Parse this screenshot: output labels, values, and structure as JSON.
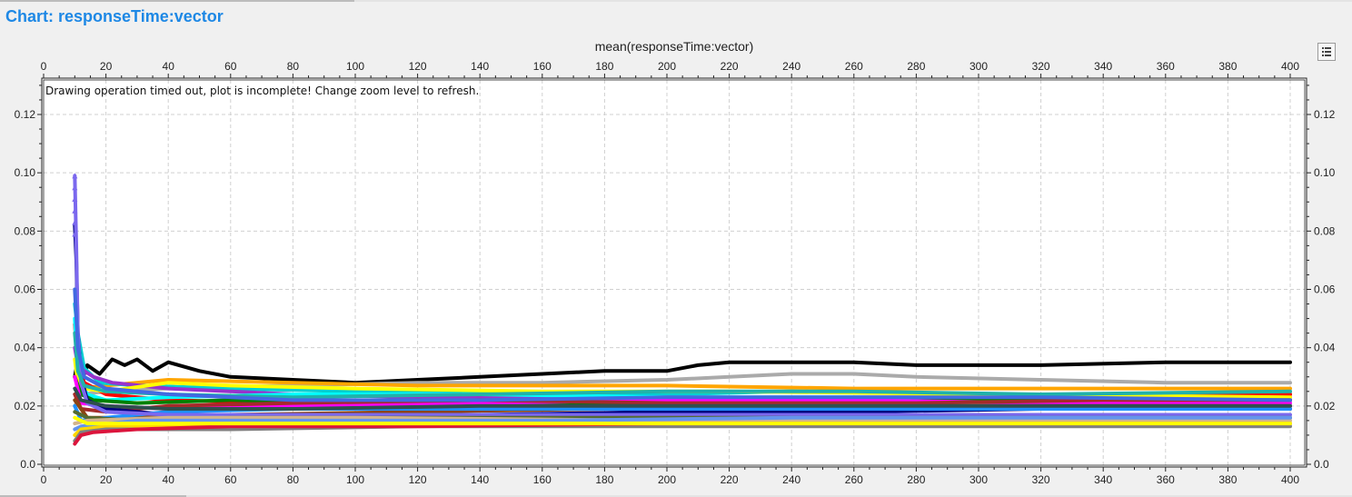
{
  "page": {
    "heading": "Chart: responseTime:vector",
    "legend_icon": "legend-list-icon"
  },
  "chart_data": {
    "type": "line",
    "title": "mean(responseTime:vector)",
    "xlabel": "",
    "ylabel": "",
    "message": "Drawing operation timed out, plot is incomplete! Change zoom level to refresh.",
    "xlim": [
      0,
      400
    ],
    "ylim": [
      0.0,
      0.13
    ],
    "x_ticks": [
      0,
      20,
      40,
      60,
      80,
      100,
      120,
      140,
      160,
      180,
      200,
      220,
      240,
      260,
      280,
      300,
      320,
      340,
      360,
      380,
      400
    ],
    "y_ticks": [
      0.0,
      0.02,
      0.04,
      0.06,
      0.08,
      0.1,
      0.12
    ],
    "y_tick_labels": [
      "0.0",
      "0.02",
      "0.04",
      "0.06",
      "0.08",
      "0.10",
      "0.12"
    ],
    "grid": true,
    "x_axis_top_and_bottom": true,
    "y_axis_left_and_right": true,
    "series": [
      {
        "color": "#000000",
        "points": [
          [
            10,
            0.03
          ],
          [
            11,
            0.036
          ],
          [
            12,
            0.028
          ],
          [
            14,
            0.034
          ],
          [
            18,
            0.031
          ],
          [
            22,
            0.036
          ],
          [
            26,
            0.034
          ],
          [
            30,
            0.036
          ],
          [
            35,
            0.032
          ],
          [
            40,
            0.035
          ],
          [
            50,
            0.032
          ],
          [
            60,
            0.03
          ],
          [
            80,
            0.029
          ],
          [
            100,
            0.028
          ],
          [
            120,
            0.029
          ],
          [
            140,
            0.03
          ],
          [
            160,
            0.031
          ],
          [
            180,
            0.032
          ],
          [
            200,
            0.032
          ],
          [
            210,
            0.034
          ],
          [
            220,
            0.035
          ],
          [
            260,
            0.035
          ],
          [
            280,
            0.034
          ],
          [
            320,
            0.034
          ],
          [
            360,
            0.035
          ],
          [
            400,
            0.035
          ]
        ]
      },
      {
        "color": "#aaaaaa",
        "points": [
          [
            10,
            0.02
          ],
          [
            12,
            0.024
          ],
          [
            20,
            0.025
          ],
          [
            40,
            0.026
          ],
          [
            80,
            0.027
          ],
          [
            120,
            0.028
          ],
          [
            160,
            0.028
          ],
          [
            200,
            0.029
          ],
          [
            220,
            0.03
          ],
          [
            240,
            0.031
          ],
          [
            260,
            0.031
          ],
          [
            280,
            0.03
          ],
          [
            320,
            0.029
          ],
          [
            360,
            0.028
          ],
          [
            400,
            0.028
          ]
        ]
      },
      {
        "color": "#ffa500",
        "points": [
          [
            10,
            0.03
          ],
          [
            12,
            0.026
          ],
          [
            20,
            0.027
          ],
          [
            40,
            0.029
          ],
          [
            80,
            0.028
          ],
          [
            120,
            0.027
          ],
          [
            160,
            0.027
          ],
          [
            200,
            0.027
          ],
          [
            260,
            0.026
          ],
          [
            320,
            0.026
          ],
          [
            360,
            0.026
          ],
          [
            400,
            0.026
          ]
        ]
      },
      {
        "color": "#00ced1",
        "points": [
          [
            10,
            0.055
          ],
          [
            11,
            0.045
          ],
          [
            13,
            0.033
          ],
          [
            18,
            0.028
          ],
          [
            30,
            0.027
          ],
          [
            60,
            0.026
          ],
          [
            100,
            0.025
          ],
          [
            160,
            0.024
          ],
          [
            200,
            0.024
          ],
          [
            240,
            0.025
          ],
          [
            300,
            0.024
          ],
          [
            360,
            0.024
          ],
          [
            400,
            0.024
          ]
        ]
      },
      {
        "color": "#9932cc",
        "points": [
          [
            10,
            0.04
          ],
          [
            11,
            0.034
          ],
          [
            13,
            0.032
          ],
          [
            16,
            0.03
          ],
          [
            22,
            0.028
          ],
          [
            40,
            0.026
          ],
          [
            80,
            0.024
          ],
          [
            120,
            0.023
          ],
          [
            200,
            0.023
          ],
          [
            260,
            0.023
          ],
          [
            320,
            0.023
          ],
          [
            400,
            0.023
          ]
        ]
      },
      {
        "color": "#ff0000",
        "points": [
          [
            10,
            0.048
          ],
          [
            11,
            0.035
          ],
          [
            13,
            0.028
          ],
          [
            20,
            0.024
          ],
          [
            40,
            0.022
          ],
          [
            80,
            0.021
          ],
          [
            120,
            0.022
          ],
          [
            160,
            0.021
          ],
          [
            200,
            0.02
          ],
          [
            260,
            0.022
          ],
          [
            320,
            0.023
          ],
          [
            360,
            0.024
          ],
          [
            400,
            0.024
          ]
        ]
      },
      {
        "color": "#00ffff",
        "points": [
          [
            10,
            0.05
          ],
          [
            11,
            0.03
          ],
          [
            14,
            0.024
          ],
          [
            20,
            0.022
          ],
          [
            40,
            0.023
          ],
          [
            80,
            0.024
          ],
          [
            140,
            0.024
          ],
          [
            200,
            0.023
          ],
          [
            260,
            0.023
          ],
          [
            320,
            0.022
          ],
          [
            400,
            0.022
          ]
        ]
      },
      {
        "color": "#ffff00",
        "points": [
          [
            10,
            0.036
          ],
          [
            11,
            0.028
          ],
          [
            13,
            0.026
          ],
          [
            20,
            0.025
          ],
          [
            40,
            0.028
          ],
          [
            60,
            0.027
          ],
          [
            100,
            0.026
          ],
          [
            160,
            0.025
          ],
          [
            220,
            0.025
          ],
          [
            300,
            0.024
          ],
          [
            400,
            0.023
          ]
        ]
      },
      {
        "color": "#008000",
        "points": [
          [
            10,
            0.03
          ],
          [
            12,
            0.024
          ],
          [
            16,
            0.022
          ],
          [
            30,
            0.021
          ],
          [
            60,
            0.022
          ],
          [
            100,
            0.021
          ],
          [
            160,
            0.021
          ],
          [
            220,
            0.021
          ],
          [
            300,
            0.022
          ],
          [
            400,
            0.022
          ]
        ]
      },
      {
        "color": "#ff00ff",
        "points": [
          [
            10,
            0.03
          ],
          [
            12,
            0.021
          ],
          [
            20,
            0.02
          ],
          [
            40,
            0.019
          ],
          [
            80,
            0.02
          ],
          [
            140,
            0.021
          ],
          [
            200,
            0.022
          ],
          [
            260,
            0.022
          ],
          [
            320,
            0.021
          ],
          [
            400,
            0.021
          ]
        ]
      },
      {
        "color": "#a52a2a",
        "points": [
          [
            10,
            0.024
          ],
          [
            12,
            0.019
          ],
          [
            20,
            0.018
          ],
          [
            40,
            0.02
          ],
          [
            80,
            0.021
          ],
          [
            140,
            0.022
          ],
          [
            200,
            0.021
          ],
          [
            280,
            0.021
          ],
          [
            340,
            0.022
          ],
          [
            400,
            0.022
          ]
        ]
      },
      {
        "color": "#8b4513",
        "points": [
          [
            10,
            0.022
          ],
          [
            14,
            0.016
          ],
          [
            24,
            0.016
          ],
          [
            60,
            0.017
          ],
          [
            120,
            0.018
          ],
          [
            180,
            0.019
          ],
          [
            240,
            0.02
          ],
          [
            300,
            0.02
          ],
          [
            360,
            0.02
          ],
          [
            400,
            0.02
          ]
        ]
      },
      {
        "color": "#000080",
        "points": [
          [
            10,
            0.082
          ],
          [
            10.5,
            0.07
          ],
          [
            11,
            0.045
          ],
          [
            12,
            0.03
          ],
          [
            14,
            0.022
          ],
          [
            20,
            0.019
          ],
          [
            40,
            0.017
          ],
          [
            80,
            0.017
          ],
          [
            140,
            0.017
          ],
          [
            200,
            0.018
          ],
          [
            260,
            0.018
          ],
          [
            320,
            0.019
          ],
          [
            400,
            0.019
          ]
        ]
      },
      {
        "color": "#1e90ff",
        "points": [
          [
            10,
            0.02
          ],
          [
            12,
            0.015
          ],
          [
            20,
            0.016
          ],
          [
            40,
            0.018
          ],
          [
            80,
            0.019
          ],
          [
            140,
            0.019
          ],
          [
            200,
            0.019
          ],
          [
            280,
            0.019
          ],
          [
            340,
            0.019
          ],
          [
            400,
            0.019
          ]
        ]
      },
      {
        "color": "#7b68ee",
        "points": [
          [
            10,
            0.099
          ],
          [
            10.5,
            0.075
          ],
          [
            11,
            0.045
          ],
          [
            12,
            0.028
          ],
          [
            14,
            0.021
          ],
          [
            20,
            0.018
          ],
          [
            40,
            0.017
          ],
          [
            100,
            0.017
          ],
          [
            180,
            0.017
          ],
          [
            260,
            0.017
          ],
          [
            340,
            0.017
          ],
          [
            400,
            0.017
          ]
        ]
      },
      {
        "color": "#556b2f",
        "points": [
          [
            10,
            0.018
          ],
          [
            14,
            0.016
          ],
          [
            30,
            0.015
          ],
          [
            60,
            0.016
          ],
          [
            120,
            0.016
          ],
          [
            200,
            0.016
          ],
          [
            280,
            0.016
          ],
          [
            360,
            0.016
          ],
          [
            400,
            0.016
          ]
        ]
      },
      {
        "color": "#d2b48c",
        "points": [
          [
            10,
            0.014
          ],
          [
            14,
            0.015
          ],
          [
            40,
            0.016
          ],
          [
            100,
            0.016
          ],
          [
            200,
            0.015
          ],
          [
            300,
            0.015
          ],
          [
            400,
            0.015
          ]
        ]
      },
      {
        "color": "#6495ed",
        "points": [
          [
            10,
            0.012
          ],
          [
            12,
            0.013
          ],
          [
            30,
            0.015
          ],
          [
            80,
            0.015
          ],
          [
            160,
            0.015
          ],
          [
            240,
            0.016
          ],
          [
            320,
            0.016
          ],
          [
            400,
            0.016
          ]
        ]
      },
      {
        "color": "#ffd700",
        "points": [
          [
            10,
            0.01
          ],
          [
            12,
            0.012
          ],
          [
            20,
            0.013
          ],
          [
            60,
            0.014
          ],
          [
            120,
            0.014
          ],
          [
            200,
            0.014
          ],
          [
            300,
            0.014
          ],
          [
            400,
            0.014
          ]
        ]
      },
      {
        "color": "#808080",
        "points": [
          [
            10,
            0.008
          ],
          [
            12,
            0.011
          ],
          [
            20,
            0.012
          ],
          [
            60,
            0.012
          ],
          [
            120,
            0.013
          ],
          [
            200,
            0.013
          ],
          [
            300,
            0.013
          ],
          [
            400,
            0.013
          ]
        ]
      },
      {
        "color": "#dc143c",
        "points": [
          [
            10,
            0.007
          ],
          [
            12,
            0.01
          ],
          [
            16,
            0.011
          ],
          [
            30,
            0.012
          ],
          [
            60,
            0.013
          ],
          [
            120,
            0.013
          ],
          [
            200,
            0.014
          ],
          [
            300,
            0.014
          ],
          [
            400,
            0.014
          ]
        ]
      },
      {
        "color": "#20b2aa",
        "points": [
          [
            10,
            0.045
          ],
          [
            11,
            0.032
          ],
          [
            13,
            0.027
          ],
          [
            20,
            0.025
          ],
          [
            40,
            0.024
          ],
          [
            80,
            0.023
          ],
          [
            140,
            0.024
          ],
          [
            200,
            0.025
          ],
          [
            260,
            0.025
          ],
          [
            320,
            0.024
          ],
          [
            400,
            0.025
          ]
        ]
      },
      {
        "color": "#4169e1",
        "points": [
          [
            10,
            0.06
          ],
          [
            11,
            0.04
          ],
          [
            13,
            0.03
          ],
          [
            20,
            0.026
          ],
          [
            40,
            0.024
          ],
          [
            80,
            0.022
          ],
          [
            140,
            0.022
          ],
          [
            200,
            0.023
          ],
          [
            260,
            0.023
          ],
          [
            320,
            0.023
          ],
          [
            400,
            0.022
          ]
        ]
      },
      {
        "color": "#2f4f4f",
        "points": [
          [
            10,
            0.026
          ],
          [
            12,
            0.022
          ],
          [
            20,
            0.02
          ],
          [
            40,
            0.019
          ],
          [
            80,
            0.019
          ],
          [
            140,
            0.02
          ],
          [
            200,
            0.02
          ],
          [
            260,
            0.02
          ],
          [
            320,
            0.02
          ],
          [
            400,
            0.02
          ]
        ]
      },
      {
        "color": "#ffff00",
        "points": [
          [
            10,
            0.016
          ],
          [
            14,
            0.014
          ],
          [
            30,
            0.014
          ],
          [
            80,
            0.014
          ],
          [
            160,
            0.014
          ],
          [
            240,
            0.014
          ],
          [
            320,
            0.014
          ],
          [
            400,
            0.014
          ]
        ]
      }
    ]
  }
}
